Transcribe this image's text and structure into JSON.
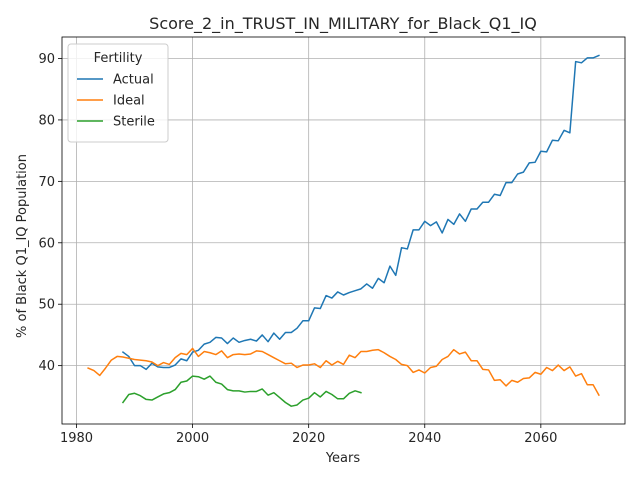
{
  "chart_data": {
    "type": "line",
    "title": "Score_2_in_TRUST_IN_MILITARY_for_Black_Q1_IQ",
    "xlabel": "Years",
    "ylabel": "% of Black Q1_IQ Population",
    "xlim": [
      1977.5,
      2074.5
    ],
    "ylim": [
      30.5,
      93.5
    ],
    "xticks": [
      1980,
      2000,
      2020,
      2040,
      2060
    ],
    "yticks": [
      40,
      50,
      60,
      70,
      80,
      90
    ],
    "grid": true,
    "legend": {
      "title": "Fertility",
      "placement": "top-left"
    },
    "series": [
      {
        "name": "Actual",
        "color": "#1f77b4",
        "x": [
          1988,
          1989,
          1990,
          1991,
          1992,
          1993,
          1994,
          1995,
          1996,
          1997,
          1998,
          1999,
          2000,
          2001,
          2002,
          2003,
          2004,
          2005,
          2006,
          2007,
          2008,
          2009,
          2010,
          2011,
          2012,
          2013,
          2014,
          2015,
          2016,
          2017,
          2018,
          2019,
          2020,
          2021,
          2022,
          2023,
          2024,
          2025,
          2026,
          2027,
          2028,
          2029,
          2030,
          2031,
          2032,
          2033,
          2034,
          2035,
          2036,
          2037,
          2038,
          2039,
          2040,
          2041,
          2042,
          2043,
          2044,
          2045,
          2046,
          2047,
          2048,
          2049,
          2050,
          2051,
          2052,
          2053,
          2054,
          2055,
          2056,
          2057,
          2058,
          2059,
          2060,
          2061,
          2062,
          2063,
          2064,
          2065,
          2066,
          2067,
          2068,
          2069,
          2070
        ],
        "values": [
          42.2,
          41.5,
          40.0,
          40.0,
          39.4,
          40.4,
          39.8,
          39.7,
          39.7,
          40.1,
          41.1,
          40.8,
          42.2,
          42.5,
          43.5,
          43.8,
          44.6,
          44.5,
          43.6,
          44.5,
          43.8,
          44.1,
          44.3,
          44.0,
          45.0,
          43.9,
          45.3,
          44.3,
          45.4,
          45.4,
          46.1,
          47.3,
          47.3,
          49.4,
          49.3,
          51.4,
          51.0,
          52.0,
          51.5,
          51.9,
          52.2,
          52.5,
          53.3,
          52.6,
          54.2,
          53.5,
          56.2,
          54.7,
          59.2,
          59.0,
          62.1,
          62.1,
          63.5,
          62.8,
          63.4,
          61.6,
          63.8,
          63.0,
          64.7,
          63.5,
          65.5,
          65.5,
          66.6,
          66.6,
          67.9,
          67.7,
          69.8,
          69.8,
          71.2,
          71.5,
          73.0,
          73.1,
          74.9,
          74.8,
          76.7,
          76.6,
          78.3,
          77.9,
          89.5,
          89.3,
          90.1,
          90.1,
          90.5
        ]
      },
      {
        "name": "Ideal",
        "color": "#ff7f0e",
        "x": [
          1982,
          1983,
          1984,
          1985,
          1986,
          1987,
          1988,
          1989,
          1990,
          1991,
          1992,
          1993,
          1994,
          1995,
          1996,
          1997,
          1998,
          1999,
          2000,
          2001,
          2002,
          2003,
          2004,
          2005,
          2006,
          2007,
          2008,
          2009,
          2010,
          2011,
          2012,
          2013,
          2014,
          2015,
          2016,
          2017,
          2018,
          2019,
          2020,
          2021,
          2022,
          2023,
          2024,
          2025,
          2026,
          2027,
          2028,
          2029,
          2030,
          2031,
          2032,
          2033,
          2034,
          2035,
          2036,
          2037,
          2038,
          2039,
          2040,
          2041,
          2042,
          2043,
          2044,
          2045,
          2046,
          2047,
          2048,
          2049,
          2050,
          2051,
          2052,
          2053,
          2054,
          2055,
          2056,
          2057,
          2058,
          2059,
          2060,
          2061,
          2062,
          2063,
          2064,
          2065,
          2066,
          2067,
          2068,
          2069,
          2070
        ],
        "values": [
          39.6,
          39.2,
          38.4,
          39.6,
          40.9,
          41.5,
          41.4,
          41.2,
          41.0,
          40.9,
          40.8,
          40.6,
          40.0,
          40.5,
          40.2,
          41.3,
          42.0,
          41.8,
          42.8,
          41.5,
          42.3,
          42.1,
          41.8,
          42.4,
          41.3,
          41.8,
          41.9,
          41.8,
          41.9,
          42.4,
          42.3,
          41.8,
          41.3,
          40.8,
          40.3,
          40.4,
          39.7,
          40.1,
          40.1,
          40.3,
          39.7,
          40.8,
          40.1,
          40.7,
          40.2,
          41.7,
          41.3,
          42.3,
          42.3,
          42.5,
          42.6,
          42.1,
          41.5,
          41.0,
          40.2,
          40.0,
          38.9,
          39.3,
          38.8,
          39.7,
          39.9,
          41.0,
          41.5,
          42.6,
          41.9,
          42.2,
          40.8,
          40.8,
          39.4,
          39.3,
          37.6,
          37.7,
          36.7,
          37.6,
          37.3,
          37.9,
          38.0,
          38.9,
          38.6,
          39.7,
          39.2,
          40.1,
          39.2,
          39.8,
          38.3,
          38.7,
          36.9,
          36.9,
          35.2
        ]
      },
      {
        "name": "Sterile",
        "color": "#2ca02c",
        "x": [
          1988,
          1989,
          1990,
          1991,
          1992,
          1993,
          1994,
          1995,
          1996,
          1997,
          1998,
          1999,
          2000,
          2001,
          2002,
          2003,
          2004,
          2005,
          2006,
          2007,
          2008,
          2009,
          2010,
          2011,
          2012,
          2013,
          2014,
          2015,
          2016,
          2017,
          2018,
          2019,
          2020,
          2021,
          2022,
          2023,
          2024,
          2025,
          2026,
          2027,
          2028,
          2029
        ],
        "values": [
          34.0,
          35.3,
          35.5,
          35.1,
          34.5,
          34.4,
          34.9,
          35.4,
          35.6,
          36.1,
          37.3,
          37.5,
          38.3,
          38.2,
          37.8,
          38.3,
          37.3,
          37.0,
          36.1,
          35.9,
          35.9,
          35.7,
          35.8,
          35.8,
          36.2,
          35.2,
          35.6,
          34.8,
          34.0,
          33.4,
          33.6,
          34.4,
          34.7,
          35.6,
          34.9,
          35.8,
          35.3,
          34.6,
          34.6,
          35.5,
          35.9,
          35.6
        ]
      }
    ]
  }
}
